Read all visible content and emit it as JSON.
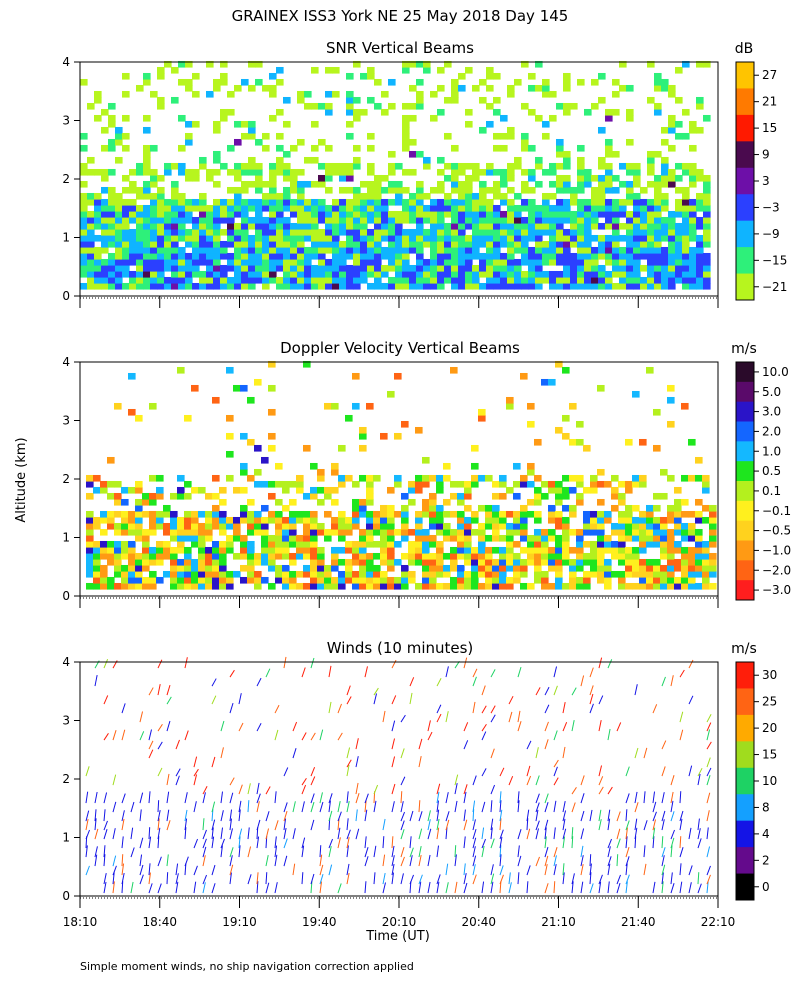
{
  "chart_data": {
    "type": "heatmap",
    "title": "GRAINEX ISS3 York NE  25 May 2018 Day 145",
    "footnote": "Simple moment winds, no ship navigation correction applied",
    "xlabel": "Time (UT)",
    "ylabel": "Altitude (km)",
    "x_ticks": [
      "18:10",
      "18:40",
      "19:10",
      "19:40",
      "20:10",
      "20:40",
      "21:10",
      "21:40",
      "22:10"
    ],
    "x_range_minutes": [
      0,
      240
    ],
    "y_ticks": [
      "0",
      "1",
      "2",
      "3",
      "4"
    ],
    "y_range_km": [
      0,
      4
    ],
    "panels": [
      {
        "title": "SNR Vertical Beams",
        "unit": "dB",
        "colorbar_labels": [
          "27",
          "21",
          "15",
          "9",
          "3",
          "−3",
          "−9",
          "−15",
          "−21"
        ],
        "colorbar_colors": [
          "#ffc400",
          "#ff7a00",
          "#ff1a00",
          "#4a0a4e",
          "#6d0fa8",
          "#2b40ff",
          "#0fb4ff",
          "#2ef07a",
          "#b7f51e"
        ]
      },
      {
        "title": "Doppler Velocity Vertical Beams",
        "unit": "m/s",
        "colorbar_labels": [
          "10.0",
          "5.0",
          "3.0",
          "2.0",
          "1.0",
          "0.5",
          "0.1",
          "−0.1",
          "−0.5",
          "−1.0",
          "−2.0",
          "−3.0"
        ],
        "colorbar_colors": [
          "#2a0a2a",
          "#5a0a6a",
          "#2a14c8",
          "#1466ff",
          "#14b8ff",
          "#1ee61e",
          "#b4f01e",
          "#fff01e",
          "#ffd21e",
          "#ff9a14",
          "#ff6414",
          "#ff1e1e"
        ]
      },
      {
        "title": "Winds (10 minutes)",
        "unit": "m/s",
        "colorbar_labels": [
          "30",
          "25",
          "20",
          "15",
          "10",
          "8",
          "4",
          "2",
          "0"
        ],
        "colorbar_colors": [
          "#ff1e0a",
          "#ff6414",
          "#ffaa00",
          "#a0dc1e",
          "#1ed264",
          "#14a0ff",
          "#1414e6",
          "#640a8c",
          "#000000"
        ]
      }
    ]
  }
}
